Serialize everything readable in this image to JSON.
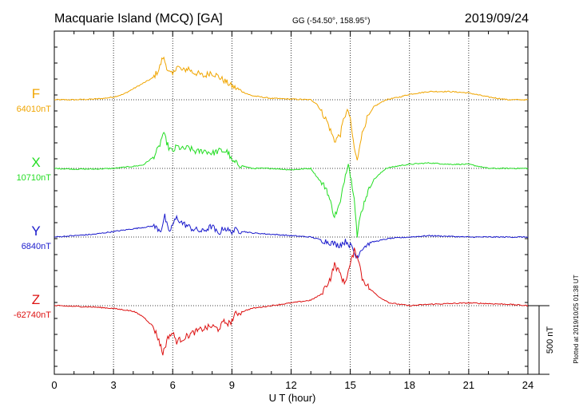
{
  "header": {
    "station": "Macquarie Island (MCQ)  [GA]",
    "coords": "GG (-54.50°, 158.95°)",
    "date": "2019/09/24"
  },
  "footer": {
    "plotted": "Plotted at 2019/10/25 01:38 UT"
  },
  "chart_data": {
    "type": "line",
    "xlabel": "U T (hour)",
    "xlim": [
      0,
      24
    ],
    "xticks": [
      0,
      3,
      6,
      9,
      12,
      15,
      18,
      21,
      24
    ],
    "units_per_panel_nT": 1200,
    "scale_bar": {
      "label": "500 nT",
      "value_nT": 500
    },
    "grid": true,
    "series": [
      {
        "name": "F",
        "baseline_label": "64010nT",
        "color": "#f0a500",
        "x": [
          0,
          1,
          2,
          2.5,
          3,
          3.5,
          4,
          4.5,
          5,
          5.3,
          5.5,
          5.6,
          5.8,
          6,
          6.2,
          6.5,
          6.8,
          7,
          7.3,
          7.6,
          7.9,
          8.2,
          8.5,
          8.8,
          9,
          9.5,
          10,
          11,
          12,
          13,
          13.3,
          13.8,
          14.2,
          14.5,
          14.7,
          14.9,
          15,
          15.2,
          15.35,
          15.5,
          15.8,
          16.2,
          16.8,
          17.5,
          18,
          19,
          20,
          21,
          22,
          23,
          24
        ],
        "y": [
          0,
          0,
          5,
          10,
          20,
          40,
          80,
          120,
          160,
          220,
          310,
          280,
          200,
          180,
          250,
          210,
          230,
          200,
          190,
          170,
          200,
          180,
          150,
          120,
          100,
          60,
          30,
          10,
          5,
          0,
          -30,
          -150,
          -300,
          -250,
          -120,
          -80,
          -150,
          -350,
          -450,
          -300,
          -150,
          -50,
          0,
          20,
          40,
          60,
          60,
          50,
          20,
          0,
          0
        ]
      },
      {
        "name": "X",
        "baseline_label": "10710nT",
        "color": "#22dd22",
        "x": [
          0,
          1,
          2,
          3,
          4,
          4.5,
          5,
          5.3,
          5.5,
          5.6,
          5.8,
          6,
          6.2,
          6.5,
          6.8,
          7.2,
          7.6,
          8,
          8.4,
          8.8,
          9,
          9.5,
          10,
          11,
          12,
          13,
          13.3,
          13.8,
          14.2,
          14.5,
          14.7,
          14.9,
          15,
          15.2,
          15.35,
          15.5,
          15.8,
          16.2,
          16.8,
          17.5,
          18,
          19,
          20,
          21,
          22,
          23,
          24
        ],
        "y": [
          0,
          -5,
          -5,
          0,
          15,
          25,
          80,
          150,
          250,
          230,
          150,
          120,
          160,
          140,
          150,
          120,
          130,
          110,
          130,
          120,
          50,
          20,
          0,
          0,
          -10,
          0,
          -60,
          -150,
          -350,
          -250,
          -80,
          50,
          -50,
          -200,
          -500,
          -350,
          -200,
          -80,
          0,
          20,
          30,
          40,
          30,
          30,
          0,
          0,
          0
        ]
      },
      {
        "name": "Y",
        "baseline_label": "6840nT",
        "color": "#1a1acc",
        "x": [
          0,
          1,
          2,
          3,
          4,
          5,
          5.4,
          5.6,
          5.8,
          6,
          6.2,
          6.5,
          7,
          7.5,
          8,
          8.3,
          8.6,
          8.9,
          9.2,
          10,
          11,
          12,
          13,
          13.5,
          14,
          14.4,
          14.8,
          15.1,
          15.3,
          15.6,
          16,
          17,
          18,
          19,
          20,
          21,
          22,
          23,
          24
        ],
        "y": [
          0,
          10,
          20,
          40,
          60,
          80,
          50,
          150,
          30,
          90,
          140,
          100,
          60,
          40,
          80,
          20,
          70,
          40,
          50,
          30,
          20,
          10,
          0,
          -20,
          -40,
          -60,
          -30,
          -80,
          -150,
          -80,
          -40,
          -10,
          0,
          10,
          5,
          0,
          0,
          0,
          0
        ]
      },
      {
        "name": "Z",
        "baseline_label": "-62740nT",
        "color": "#dd1111",
        "x": [
          0,
          1,
          2,
          3,
          4,
          4.5,
          5,
          5.3,
          5.5,
          5.6,
          5.8,
          6,
          6.2,
          6.5,
          7,
          7.5,
          8,
          8.3,
          8.6,
          8.9,
          9.2,
          10,
          11,
          12,
          13,
          13.5,
          14,
          14.2,
          14.5,
          14.7,
          14.9,
          15,
          15.2,
          15.4,
          15.6,
          16,
          16.5,
          17,
          18,
          19,
          20,
          21,
          22,
          23,
          24
        ],
        "y": [
          0,
          -5,
          -10,
          -20,
          -40,
          -80,
          -150,
          -250,
          -350,
          -300,
          -220,
          -200,
          -260,
          -240,
          -200,
          -170,
          -150,
          -170,
          -120,
          -130,
          -60,
          -20,
          0,
          20,
          40,
          80,
          200,
          300,
          230,
          160,
          250,
          300,
          400,
          350,
          200,
          120,
          60,
          20,
          0,
          10,
          15,
          20,
          15,
          10,
          0
        ]
      }
    ]
  }
}
